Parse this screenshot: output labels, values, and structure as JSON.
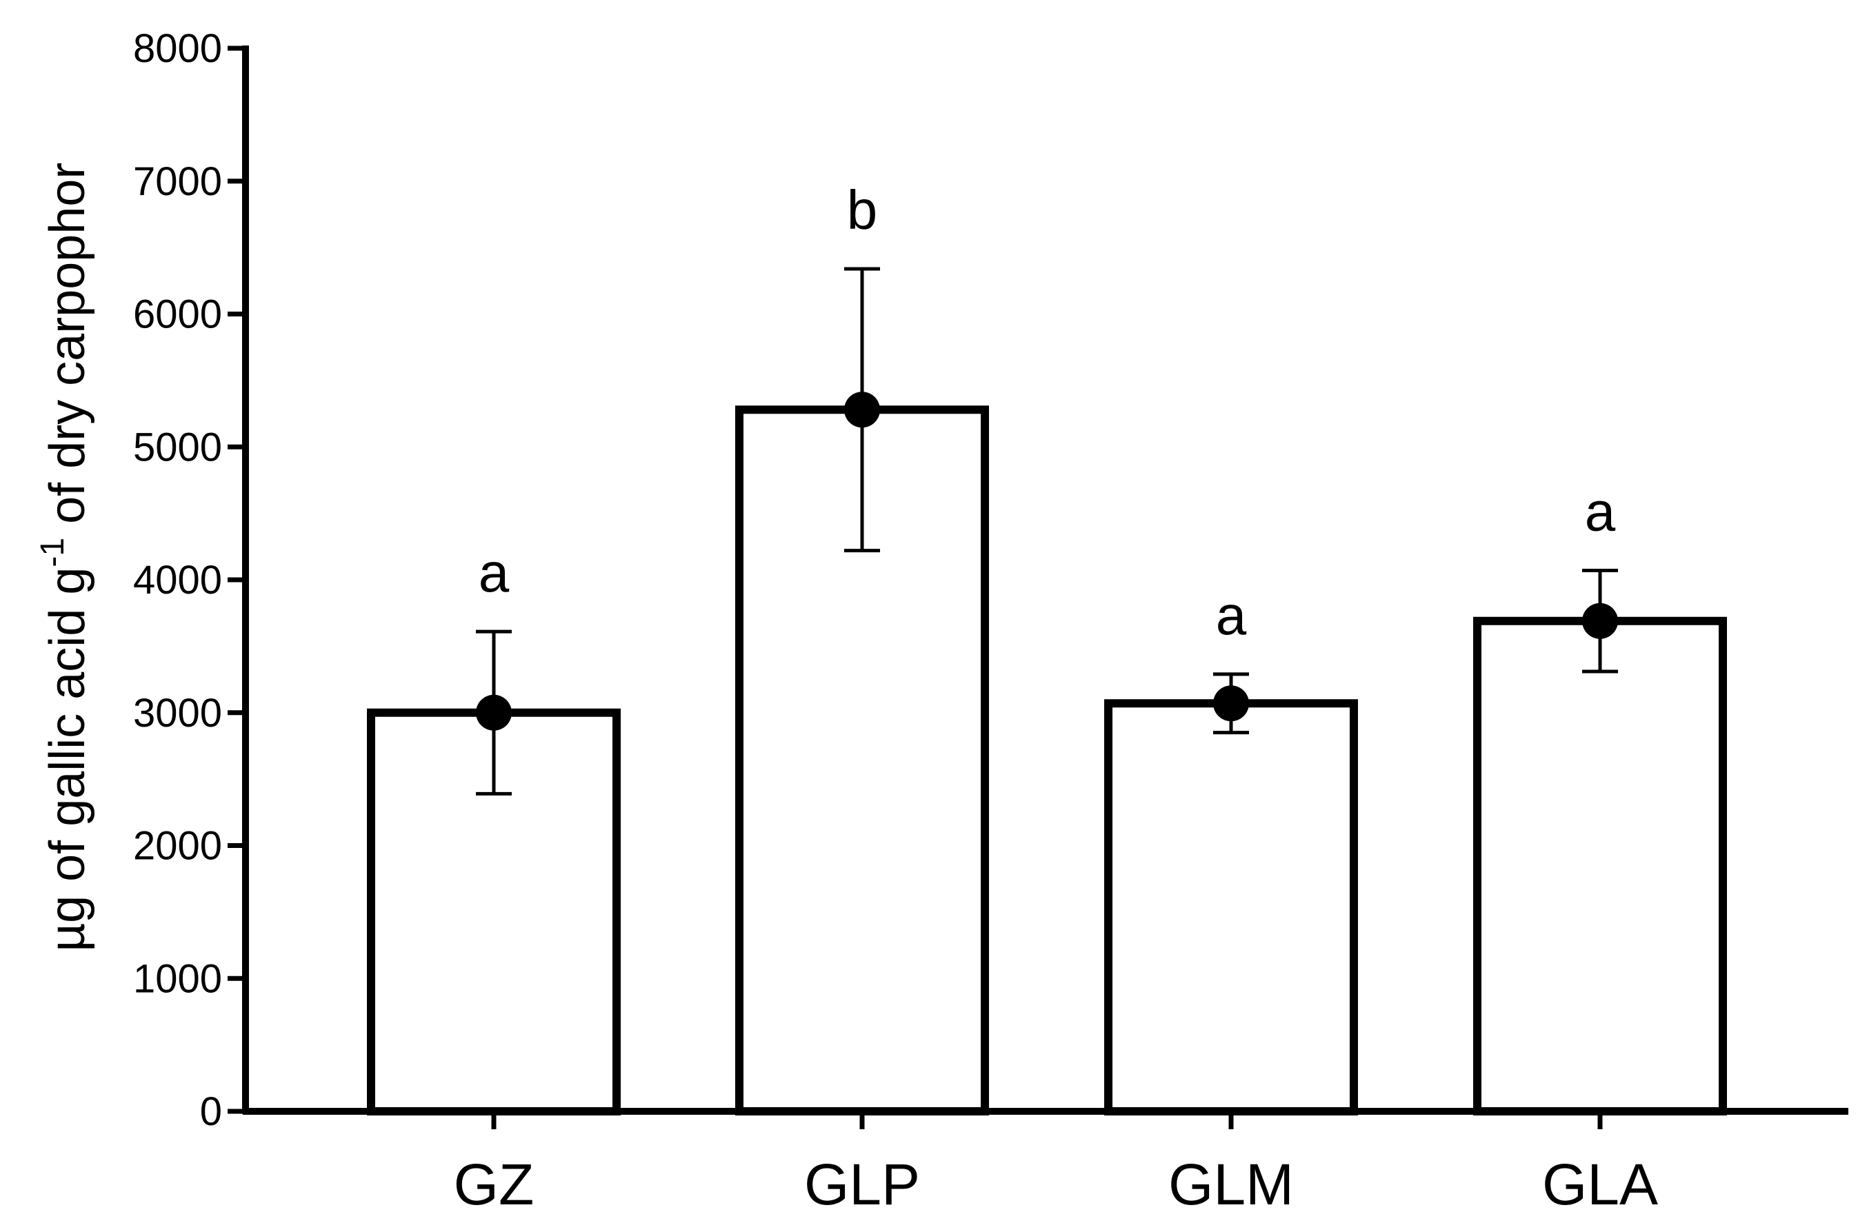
{
  "chart_data": {
    "type": "bar",
    "categories": [
      "GZ",
      "GLP",
      "GLM",
      "GLA"
    ],
    "values": [
      3000,
      5280,
      3070,
      3690
    ],
    "errors": [
      610,
      1060,
      220,
      380
    ],
    "significance": [
      "a",
      "b",
      "a",
      "a"
    ],
    "ylabel_parts": {
      "before": "µg of gallic acid  g",
      "superscript": "-1",
      "after": " of dry carpophor"
    },
    "ylim": [
      0,
      8000
    ],
    "yticks": [
      "0",
      "1000",
      "2000",
      "3000",
      "4000",
      "5000",
      "6000",
      "7000",
      "8000"
    ],
    "grid": false,
    "bar_fill": "#ffffff",
    "bar_stroke": "#000000",
    "marker": "filled-circle"
  }
}
